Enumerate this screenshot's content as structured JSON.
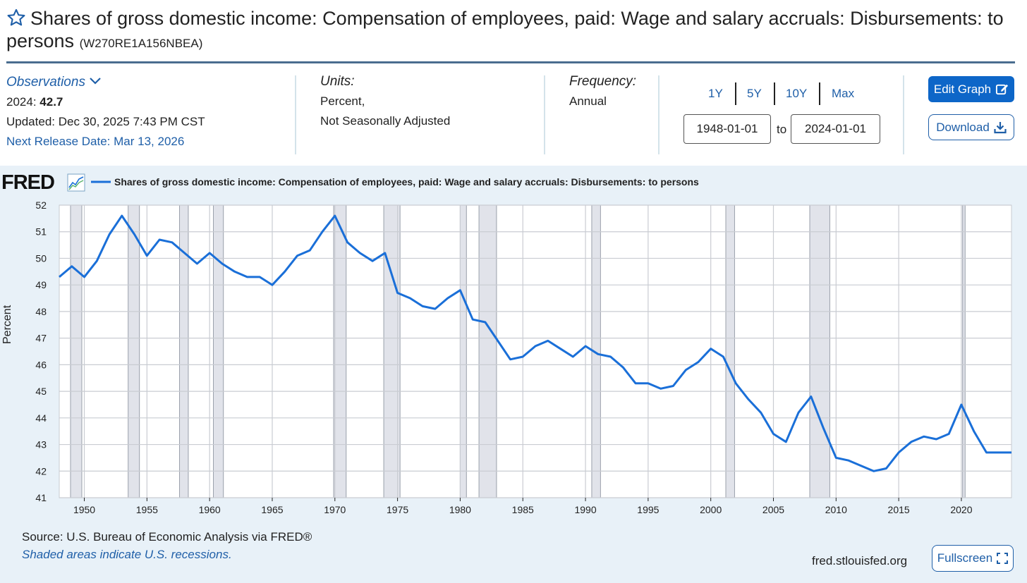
{
  "header": {
    "title": "Shares of gross domestic income: Compensation of employees, paid: Wage and salary accruals: Disbursements: to persons",
    "series_id": "(W270RE1A156NBEA)",
    "star_icon": "star-outline-icon"
  },
  "observations": {
    "label": "Observations",
    "latest_label": "2024:",
    "latest_value": "42.7",
    "updated": "Updated: Dec 30, 2025 7:43 PM CST",
    "next_release": "Next Release Date: Mar 13, 2026"
  },
  "units": {
    "label": "Units:",
    "line1": "Percent,",
    "line2": "Not Seasonally Adjusted"
  },
  "frequency": {
    "label": "Frequency:",
    "value": "Annual"
  },
  "range": {
    "options": [
      "1Y",
      "5Y",
      "10Y",
      "Max"
    ],
    "start": "1948-01-01",
    "to": "to",
    "end": "2024-01-01"
  },
  "buttons": {
    "edit_graph": "Edit Graph",
    "download": "Download",
    "fullscreen": "Fullscreen"
  },
  "graph": {
    "logo": "FRED",
    "source": "Source: U.S. Bureau of Economic Analysis via FRED®",
    "shaded_note": "Shaded areas indicate U.S. recessions.",
    "site": "fred.stlouisfed.org"
  },
  "colors": {
    "accent": "#0d66c8",
    "line": "#1a6fd8",
    "graph_bg": "#e8f1f8",
    "recession": "#e1e3ea"
  },
  "chart_data": {
    "type": "line",
    "title": "Shares of gross domestic income: Compensation of employees, paid: Wage and salary accruals: Disbursements: to persons",
    "xlabel": "",
    "ylabel": "Percent",
    "xlim": [
      1948,
      2024
    ],
    "ylim": [
      41,
      52
    ],
    "yticks": [
      41,
      42,
      43,
      44,
      45,
      46,
      47,
      48,
      49,
      50,
      51,
      52
    ],
    "xticks": [
      1950,
      1955,
      1960,
      1965,
      1970,
      1975,
      1980,
      1985,
      1990,
      1995,
      2000,
      2005,
      2010,
      2015,
      2020
    ],
    "grid": true,
    "legend": "top-left",
    "recessions": [
      [
        1948.9,
        1949.8
      ],
      [
        1953.5,
        1954.4
      ],
      [
        1957.6,
        1958.3
      ],
      [
        1960.3,
        1961.1
      ],
      [
        1969.9,
        1970.9
      ],
      [
        1973.9,
        1975.2
      ],
      [
        1980.0,
        1980.5
      ],
      [
        1981.5,
        1982.9
      ],
      [
        1990.5,
        1991.2
      ],
      [
        2001.2,
        2001.9
      ],
      [
        2007.9,
        2009.5
      ],
      [
        2020.1,
        2020.3
      ]
    ],
    "series": [
      {
        "name": "Shares of gross domestic income: Compensation of employees, paid: Wage and salary accruals: Disbursements: to persons",
        "x": [
          1948,
          1949,
          1950,
          1951,
          1952,
          1953,
          1954,
          1955,
          1956,
          1957,
          1958,
          1959,
          1960,
          1961,
          1962,
          1963,
          1964,
          1965,
          1966,
          1967,
          1968,
          1969,
          1970,
          1971,
          1972,
          1973,
          1974,
          1975,
          1976,
          1977,
          1978,
          1979,
          1980,
          1981,
          1982,
          1983,
          1984,
          1985,
          1986,
          1987,
          1988,
          1989,
          1990,
          1991,
          1992,
          1993,
          1994,
          1995,
          1996,
          1997,
          1998,
          1999,
          2000,
          2001,
          2002,
          2003,
          2004,
          2005,
          2006,
          2007,
          2008,
          2009,
          2010,
          2011,
          2012,
          2013,
          2014,
          2015,
          2016,
          2017,
          2018,
          2019,
          2020,
          2021,
          2022,
          2023,
          2024
        ],
        "values": [
          49.3,
          49.7,
          49.3,
          49.9,
          50.9,
          51.6,
          50.9,
          50.1,
          50.7,
          50.6,
          50.2,
          49.8,
          50.2,
          49.8,
          49.5,
          49.3,
          49.3,
          49.0,
          49.5,
          50.1,
          50.3,
          51.0,
          51.6,
          50.6,
          50.2,
          49.9,
          50.2,
          48.7,
          48.5,
          48.2,
          48.1,
          48.5,
          48.8,
          47.7,
          47.6,
          46.9,
          46.2,
          46.3,
          46.7,
          46.9,
          46.6,
          46.3,
          46.7,
          46.4,
          46.3,
          45.9,
          45.3,
          45.3,
          45.1,
          45.2,
          45.8,
          46.1,
          46.6,
          46.3,
          45.3,
          44.7,
          44.2,
          43.4,
          43.1,
          44.2,
          44.8,
          43.6,
          42.5,
          42.4,
          42.2,
          42.0,
          42.1,
          42.7,
          43.1,
          43.3,
          43.2,
          43.4,
          44.5,
          43.5,
          42.7,
          42.7,
          42.7
        ]
      }
    ]
  }
}
